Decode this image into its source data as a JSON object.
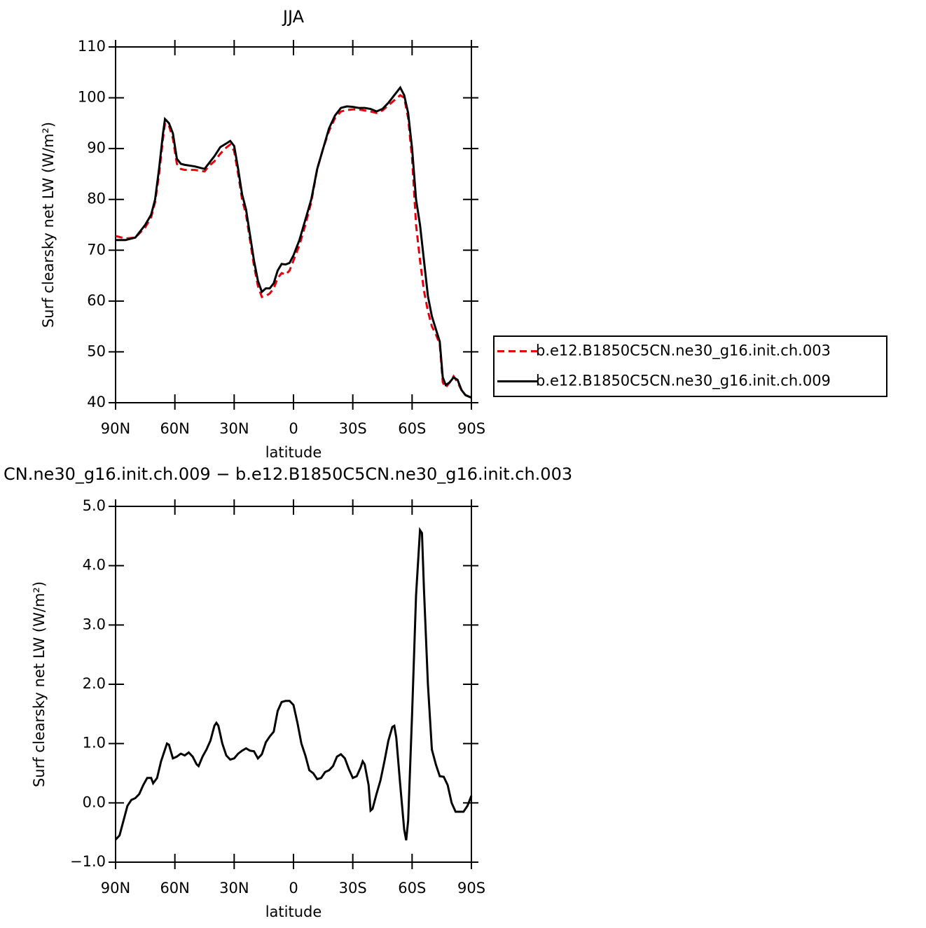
{
  "chart_data": [
    {
      "type": "line",
      "title": "JJA",
      "xlabel": "latitude",
      "ylabel": "Surf clearsky net LW (W/m²)",
      "xlim": [
        90,
        -90
      ],
      "xticks": [
        {
          "value": 90,
          "label": "90N"
        },
        {
          "value": 60,
          "label": "60N"
        },
        {
          "value": 30,
          "label": "30N"
        },
        0,
        {
          "value": -30,
          "label": "30S"
        },
        {
          "value": -60,
          "label": "60S"
        },
        {
          "value": -90,
          "label": "90S"
        }
      ],
      "ylim": [
        40,
        110
      ],
      "yticks": [
        40,
        50,
        60,
        70,
        80,
        90,
        100,
        110
      ],
      "legend": "right",
      "x": [
        90,
        85,
        80,
        75,
        72,
        70,
        68,
        66,
        65,
        63,
        61,
        59,
        57,
        55,
        50,
        45,
        43,
        40,
        37,
        34,
        32,
        30,
        28,
        26,
        24,
        22,
        20,
        18,
        16,
        14,
        12,
        10,
        8,
        6,
        4,
        2,
        0,
        -3,
        -6,
        -9,
        -12,
        -15,
        -18,
        -21,
        -24,
        -27,
        -30,
        -33,
        -36,
        -39,
        -42,
        -45,
        -48,
        -51,
        -54,
        -56,
        -58,
        -60,
        -62,
        -64,
        -66,
        -68,
        -70,
        -72,
        -74,
        -75.5,
        -77,
        -79,
        -81,
        -83,
        -85,
        -87,
        -90
      ],
      "series": [
        {
          "name": "b.e12.B1850C5CN.ne30_g16.init.ch.003",
          "color": "#e8000b",
          "line_style": "dashed",
          "values": [
            72.8,
            72.3,
            72.5,
            74.5,
            76.5,
            79.5,
            85,
            92,
            95,
            94.5,
            92,
            87,
            86,
            85.8,
            85.8,
            85.5,
            86.5,
            87.5,
            89,
            90.2,
            90.8,
            89.5,
            85,
            80,
            77,
            72,
            67,
            63,
            60.8,
            61,
            61.5,
            62.5,
            64.5,
            65.5,
            65.2,
            66,
            68,
            71,
            75,
            79.5,
            86,
            90,
            93.5,
            96,
            97.3,
            97.6,
            97.7,
            97.7,
            97.5,
            97.3,
            97,
            97.5,
            98.5,
            99.5,
            100.5,
            100,
            96,
            88,
            75,
            68,
            62,
            58,
            55,
            53.5,
            51.5,
            44,
            43,
            44,
            45.2,
            44,
            42.5,
            41.5,
            41
          ]
        },
        {
          "name": "b.e12.B1850C5CN.ne30_g16.init.ch.009",
          "color": "#000000",
          "line_style": "solid",
          "values": [
            72,
            72,
            72.5,
            75,
            77,
            80,
            86,
            93,
            95.8,
            95,
            93,
            88,
            87,
            86.8,
            86.5,
            86,
            87,
            88.5,
            90.3,
            91,
            91.5,
            90.5,
            86,
            81,
            78,
            73,
            68,
            64,
            61.8,
            62.5,
            62.5,
            63.5,
            66,
            67.3,
            67.2,
            67.5,
            69,
            72,
            76,
            80,
            86,
            90,
            94,
            96.5,
            98,
            98.3,
            98.2,
            98,
            98,
            97.8,
            97.3,
            97.8,
            99,
            100.5,
            102,
            100.5,
            97,
            90,
            80,
            75,
            68,
            61,
            57,
            54.5,
            52,
            45,
            43.5,
            44,
            45,
            44.5,
            42.5,
            41.5,
            41
          ]
        }
      ]
    },
    {
      "type": "line",
      "title": "CN.ne30_g16.init.ch.009 − b.e12.B1850C5CN.ne30_g16.init.ch.003",
      "xlabel": "latitude",
      "ylabel": "Surf clearsky net LW (W/m²)",
      "xlim": [
        90,
        -90
      ],
      "xticks": [
        {
          "value": 90,
          "label": "90N"
        },
        {
          "value": 60,
          "label": "60N"
        },
        {
          "value": 30,
          "label": "30N"
        },
        0,
        {
          "value": -30,
          "label": "30S"
        },
        {
          "value": -60,
          "label": "60S"
        },
        {
          "value": -90,
          "label": "90S"
        }
      ],
      "ylim": [
        -1,
        5
      ],
      "yticks": [
        {
          "value": -1,
          "label": "−1.0"
        },
        {
          "value": 0,
          "label": "0.0"
        },
        {
          "value": 1,
          "label": "1.0"
        },
        {
          "value": 2,
          "label": "2.0"
        },
        {
          "value": 3,
          "label": "3.0"
        },
        {
          "value": 4,
          "label": "4.0"
        },
        {
          "value": 5,
          "label": "5.0"
        }
      ],
      "x": [
        90,
        88,
        86,
        84,
        82,
        80,
        78,
        76,
        74,
        72,
        71,
        69,
        67,
        65,
        64,
        63,
        61,
        59,
        57,
        55,
        53,
        51,
        49,
        48,
        46,
        44,
        42,
        40,
        39,
        38,
        36,
        34,
        32,
        30,
        28,
        26,
        24,
        22,
        20,
        18,
        16,
        14,
        12,
        10,
        8,
        6,
        4,
        2,
        0,
        -2,
        -4,
        -6,
        -8,
        -10,
        -12,
        -14,
        -16,
        -18,
        -20,
        -22,
        -24,
        -26,
        -28,
        -30,
        -32,
        -34,
        -35,
        -36,
        -38,
        -39,
        -40,
        -42,
        -44,
        -46,
        -48,
        -50,
        -51,
        -52,
        -54,
        -56,
        -57,
        -58,
        -60,
        -62,
        -64,
        -65,
        -66,
        -68,
        -70,
        -72,
        -74,
        -76,
        -78,
        -80,
        -82,
        -84,
        -86,
        -88,
        -90
      ],
      "series": [
        {
          "color": "#000000",
          "line_style": "solid",
          "values": [
            -0.62,
            -0.55,
            -0.3,
            -0.05,
            0.05,
            0.08,
            0.15,
            0.3,
            0.42,
            0.42,
            0.33,
            0.42,
            0.7,
            0.9,
            1.0,
            0.98,
            0.75,
            0.78,
            0.83,
            0.8,
            0.85,
            0.78,
            0.65,
            0.62,
            0.78,
            0.9,
            1.05,
            1.3,
            1.35,
            1.3,
            1.0,
            0.8,
            0.73,
            0.75,
            0.83,
            0.88,
            0.92,
            0.88,
            0.87,
            0.75,
            0.82,
            1.02,
            1.12,
            1.2,
            1.55,
            1.7,
            1.72,
            1.72,
            1.65,
            1.35,
            1.0,
            0.8,
            0.55,
            0.5,
            0.4,
            0.42,
            0.52,
            0.55,
            0.62,
            0.78,
            0.82,
            0.75,
            0.57,
            0.42,
            0.45,
            0.6,
            0.7,
            0.65,
            0.3,
            -0.13,
            -0.1,
            0.15,
            0.38,
            0.7,
            1.05,
            1.28,
            1.3,
            1.1,
            0.3,
            -0.45,
            -0.63,
            -0.3,
            1.5,
            3.5,
            4.6,
            4.55,
            3.6,
            2.0,
            0.9,
            0.65,
            0.45,
            0.44,
            0.3,
            0.0,
            -0.15,
            -0.15,
            -0.15,
            -0.05,
            0.12
          ]
        }
      ]
    }
  ]
}
